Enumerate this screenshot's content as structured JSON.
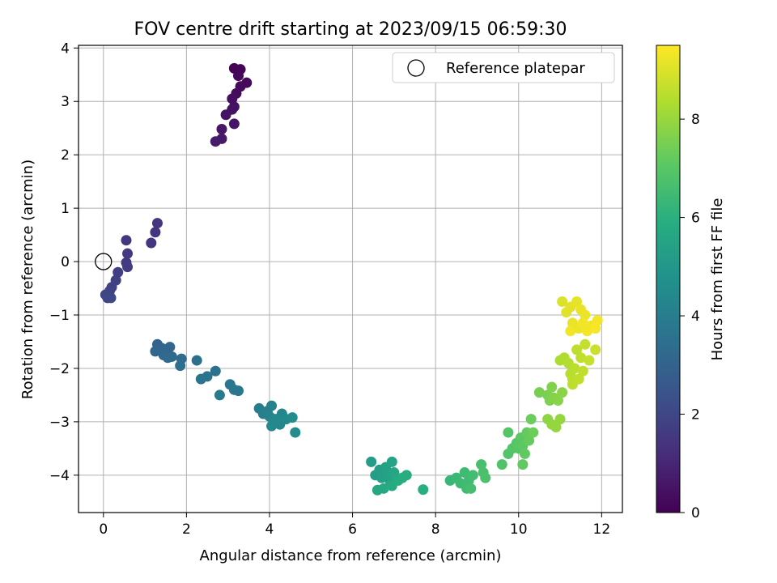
{
  "chart_data": {
    "type": "scatter",
    "title": "FOV centre drift starting at 2023/09/15 06:59:30",
    "xlabel": "Angular distance from reference (arcmin)",
    "ylabel": "Rotation from reference (arcmin)",
    "xlim": [
      -0.6,
      12.5
    ],
    "ylim": [
      -4.7,
      4.05
    ],
    "x_ticks": [
      0,
      2,
      4,
      6,
      8,
      10,
      12
    ],
    "y_ticks": [
      -4,
      -3,
      -2,
      -1,
      0,
      1,
      2,
      3,
      4
    ],
    "grid": true,
    "legend": {
      "placement": "top-right",
      "entries": [
        "Reference platepar"
      ]
    },
    "reference_point": {
      "x": 0,
      "y": 0,
      "label": "Reference platepar"
    },
    "colorbar": {
      "label": "Hours from first FF file",
      "range": [
        0,
        9.5
      ],
      "ticks": [
        0,
        2,
        4,
        6,
        8
      ],
      "colormap": "viridis"
    },
    "points": [
      [
        3.15,
        3.62,
        0.05
      ],
      [
        3.3,
        3.6,
        0.1
      ],
      [
        3.25,
        3.48,
        0.15
      ],
      [
        3.45,
        3.35,
        0.2
      ],
      [
        3.3,
        3.28,
        0.25
      ],
      [
        3.2,
        3.15,
        0.3
      ],
      [
        3.1,
        3.05,
        0.35
      ],
      [
        3.15,
        2.9,
        0.4
      ],
      [
        3.1,
        2.85,
        0.45
      ],
      [
        2.95,
        2.75,
        0.5
      ],
      [
        3.15,
        2.58,
        0.55
      ],
      [
        2.85,
        2.48,
        0.6
      ],
      [
        2.85,
        2.3,
        0.65
      ],
      [
        2.7,
        2.25,
        0.7
      ],
      [
        1.3,
        0.72,
        1.4
      ],
      [
        1.25,
        0.55,
        1.45
      ],
      [
        1.15,
        0.35,
        1.5
      ],
      [
        0.55,
        0.4,
        1.55
      ],
      [
        0.58,
        0.15,
        1.6
      ],
      [
        0.55,
        -0.02,
        1.65
      ],
      [
        0.58,
        -0.1,
        1.7
      ],
      [
        0.35,
        -0.2,
        1.75
      ],
      [
        0.3,
        -0.35,
        1.8
      ],
      [
        0.2,
        -0.48,
        1.85
      ],
      [
        0.15,
        -0.55,
        1.9
      ],
      [
        0.05,
        -0.62,
        1.95
      ],
      [
        0.1,
        -0.68,
        2.0
      ],
      [
        0.18,
        -0.68,
        2.05
      ],
      [
        1.3,
        -1.55,
        3.0
      ],
      [
        1.4,
        -1.62,
        3.05
      ],
      [
        1.5,
        -1.65,
        3.1
      ],
      [
        1.6,
        -1.6,
        3.1
      ],
      [
        1.25,
        -1.68,
        3.15
      ],
      [
        1.45,
        -1.75,
        3.2
      ],
      [
        1.55,
        -1.8,
        3.25
      ],
      [
        1.65,
        -1.78,
        3.3
      ],
      [
        1.88,
        -1.82,
        3.35
      ],
      [
        1.85,
        -1.95,
        3.4
      ],
      [
        2.25,
        -1.85,
        3.5
      ],
      [
        2.7,
        -2.05,
        3.55
      ],
      [
        2.5,
        -2.15,
        3.6
      ],
      [
        2.35,
        -2.2,
        3.65
      ],
      [
        3.05,
        -2.3,
        3.7
      ],
      [
        3.15,
        -2.4,
        3.75
      ],
      [
        3.25,
        -2.42,
        3.8
      ],
      [
        2.8,
        -2.5,
        3.85
      ],
      [
        3.75,
        -2.75,
        4.0
      ],
      [
        3.85,
        -2.85,
        4.05
      ],
      [
        3.95,
        -2.8,
        4.1
      ],
      [
        4.05,
        -2.7,
        4.15
      ],
      [
        4.0,
        -2.9,
        4.2
      ],
      [
        4.1,
        -2.95,
        4.25
      ],
      [
        4.2,
        -3.0,
        4.3
      ],
      [
        4.3,
        -2.85,
        4.3
      ],
      [
        4.25,
        -3.05,
        4.35
      ],
      [
        4.05,
        -3.08,
        4.4
      ],
      [
        4.15,
        -2.95,
        4.45
      ],
      [
        4.4,
        -2.95,
        4.5
      ],
      [
        4.55,
        -2.92,
        4.55
      ],
      [
        4.62,
        -3.2,
        4.6
      ],
      [
        6.45,
        -3.75,
        5.2
      ],
      [
        6.55,
        -4.0,
        5.25
      ],
      [
        6.65,
        -3.9,
        5.3
      ],
      [
        6.7,
        -4.05,
        5.35
      ],
      [
        6.8,
        -3.85,
        5.4
      ],
      [
        6.85,
        -4.0,
        5.45
      ],
      [
        6.95,
        -3.75,
        5.5
      ],
      [
        6.9,
        -4.1,
        5.5
      ],
      [
        7.0,
        -3.95,
        5.55
      ],
      [
        7.05,
        -4.05,
        5.6
      ],
      [
        6.6,
        -4.28,
        5.65
      ],
      [
        6.75,
        -4.25,
        5.7
      ],
      [
        6.95,
        -4.2,
        5.75
      ],
      [
        7.1,
        -4.1,
        5.8
      ],
      [
        7.3,
        -4.0,
        5.85
      ],
      [
        7.2,
        -4.05,
        5.9
      ],
      [
        7.7,
        -4.27,
        5.95
      ],
      [
        8.35,
        -4.1,
        6.3
      ],
      [
        8.5,
        -4.05,
        6.35
      ],
      [
        8.6,
        -4.15,
        6.4
      ],
      [
        8.7,
        -3.95,
        6.45
      ],
      [
        8.75,
        -4.25,
        6.5
      ],
      [
        8.8,
        -4.1,
        6.5
      ],
      [
        8.9,
        -4.0,
        6.55
      ],
      [
        8.85,
        -4.25,
        6.6
      ],
      [
        9.1,
        -3.8,
        6.65
      ],
      [
        9.15,
        -3.95,
        6.7
      ],
      [
        9.2,
        -4.05,
        6.75
      ],
      [
        9.6,
        -3.8,
        6.8
      ],
      [
        9.75,
        -3.6,
        6.85
      ],
      [
        9.75,
        -3.2,
        6.9
      ],
      [
        9.85,
        -3.5,
        6.9
      ],
      [
        9.95,
        -3.4,
        6.95
      ],
      [
        10.0,
        -3.5,
        7.0
      ],
      [
        10.05,
        -3.3,
        7.05
      ],
      [
        10.1,
        -3.45,
        7.1
      ],
      [
        10.15,
        -3.6,
        7.15
      ],
      [
        10.1,
        -3.8,
        7.15
      ],
      [
        10.2,
        -3.2,
        7.2
      ],
      [
        10.25,
        -3.35,
        7.25
      ],
      [
        10.3,
        -2.95,
        7.3
      ],
      [
        10.35,
        -3.2,
        7.35
      ],
      [
        10.5,
        -2.45,
        7.5
      ],
      [
        10.7,
        -2.5,
        7.55
      ],
      [
        10.75,
        -2.6,
        7.6
      ],
      [
        10.8,
        -2.35,
        7.65
      ],
      [
        10.85,
        -2.55,
        7.7
      ],
      [
        10.95,
        -2.6,
        7.75
      ],
      [
        11.05,
        -2.45,
        7.8
      ],
      [
        10.7,
        -2.95,
        7.85
      ],
      [
        10.8,
        -3.05,
        7.9
      ],
      [
        10.9,
        -3.1,
        7.95
      ],
      [
        11.0,
        -2.95,
        7.95
      ],
      [
        11.0,
        -1.85,
        8.3
      ],
      [
        11.1,
        -1.8,
        8.35
      ],
      [
        11.2,
        -1.9,
        8.4
      ],
      [
        11.25,
        -2.1,
        8.45
      ],
      [
        11.3,
        -2.2,
        8.5
      ],
      [
        11.35,
        -2.0,
        8.5
      ],
      [
        11.4,
        -1.65,
        8.55
      ],
      [
        11.5,
        -1.8,
        8.6
      ],
      [
        11.55,
        -2.05,
        8.6
      ],
      [
        11.6,
        -1.55,
        8.65
      ],
      [
        11.7,
        -1.85,
        8.7
      ],
      [
        11.85,
        -1.65,
        8.75
      ],
      [
        11.3,
        -2.3,
        8.55
      ],
      [
        11.45,
        -2.2,
        8.6
      ],
      [
        11.05,
        -0.75,
        9.0
      ],
      [
        11.15,
        -0.95,
        9.05
      ],
      [
        11.25,
        -0.85,
        9.1
      ],
      [
        11.4,
        -0.75,
        9.15
      ],
      [
        11.5,
        -0.9,
        9.2
      ],
      [
        11.6,
        -1.0,
        9.25
      ],
      [
        11.3,
        -1.15,
        9.2
      ],
      [
        11.45,
        -1.25,
        9.25
      ],
      [
        11.55,
        -1.15,
        9.3
      ],
      [
        11.65,
        -1.3,
        9.35
      ],
      [
        11.75,
        -1.2,
        9.3
      ],
      [
        11.9,
        -1.1,
        9.35
      ],
      [
        11.25,
        -1.3,
        9.3
      ],
      [
        11.85,
        -1.25,
        9.4
      ]
    ]
  }
}
